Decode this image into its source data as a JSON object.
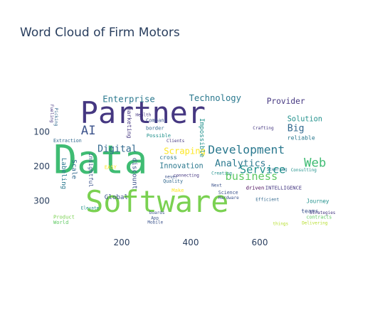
{
  "title": "Word Cloud of Firm Motors",
  "chart_data": {
    "type": "wordcloud",
    "title": "Word Cloud of Firm Motors",
    "xlabel": "",
    "ylabel": "",
    "xlim": [
      0,
      800
    ],
    "ylim": [
      400,
      0
    ],
    "x_ticks": [
      200,
      400,
      600
    ],
    "y_ticks": [
      100,
      200,
      300
    ],
    "words": [
      {
        "text": "Partner",
        "x": 80,
        "y": 10,
        "size": 82,
        "color": "#453781"
      },
      {
        "text": "Data",
        "x": 2,
        "y": 135,
        "size": 108,
        "color": "#3fbc73"
      },
      {
        "text": "Software",
        "x": 95,
        "y": 268,
        "size": 82,
        "color": "#7ad151"
      },
      {
        "text": "Development",
        "x": 450,
        "y": 138,
        "size": 32,
        "color": "#2a788e"
      },
      {
        "text": "Technology",
        "x": 395,
        "y": -8,
        "size": 24,
        "color": "#2a788e"
      },
      {
        "text": "Enterprise",
        "x": 145,
        "y": -5,
        "size": 24,
        "color": "#2a788e"
      },
      {
        "text": "Provider",
        "x": 620,
        "y": 2,
        "size": 22,
        "color": "#453781"
      },
      {
        "text": "business",
        "x": 500,
        "y": 216,
        "size": 30,
        "color": "#5ec962"
      },
      {
        "text": "Service",
        "x": 542,
        "y": 196,
        "size": 30,
        "color": "#21918c"
      },
      {
        "text": "Analytics",
        "x": 470,
        "y": 182,
        "size": 26,
        "color": "#2a788e"
      },
      {
        "text": "Web",
        "x": 728,
        "y": 176,
        "size": 34,
        "color": "#3fbc73"
      },
      {
        "text": "Digital",
        "x": 130,
        "y": 140,
        "size": 26,
        "color": "#31688e"
      },
      {
        "text": "Scraping",
        "x": 322,
        "y": 146,
        "size": 24,
        "color": "#fde725"
      },
      {
        "text": "AI",
        "x": 82,
        "y": 82,
        "size": 34,
        "color": "#3b528b"
      },
      {
        "text": "Big",
        "x": 680,
        "y": 80,
        "size": 26,
        "color": "#31688e"
      },
      {
        "text": "Solution",
        "x": 680,
        "y": 56,
        "size": 20,
        "color": "#21918c"
      },
      {
        "text": "Innovation",
        "x": 310,
        "y": 192,
        "size": 20,
        "color": "#2a788e"
      },
      {
        "text": "Global",
        "x": 150,
        "y": 282,
        "size": 18,
        "color": "#3b528b"
      },
      {
        "text": "Impossible",
        "x": 440,
        "y": 60,
        "size": 18,
        "color": "#21918c",
        "rotate": true
      },
      {
        "text": "marketing",
        "x": 230,
        "y": 28,
        "size": 16,
        "color": "#453781",
        "rotate": true
      },
      {
        "text": "discount",
        "x": 245,
        "y": 175,
        "size": 18,
        "color": "#3b528b",
        "rotate": true
      },
      {
        "text": "Labeling",
        "x": 40,
        "y": 175,
        "size": 18,
        "color": "#2a788e",
        "rotate": true
      },
      {
        "text": "Scale",
        "x": 70,
        "y": 180,
        "size": 18,
        "color": "#31688e",
        "rotate": true
      },
      {
        "text": "insightful",
        "x": 118,
        "y": 160,
        "size": 16,
        "color": "#3b528b",
        "rotate": true
      },
      {
        "text": "Company",
        "x": 270,
        "y": 60,
        "size": 14,
        "color": "#3b528b"
      },
      {
        "text": "border",
        "x": 270,
        "y": 82,
        "size": 14,
        "color": "#31688e"
      },
      {
        "text": "Possible",
        "x": 272,
        "y": 104,
        "size": 14,
        "color": "#21918c"
      },
      {
        "text": "Health",
        "x": 240,
        "y": 46,
        "size": 12,
        "color": "#453781"
      },
      {
        "text": "cross",
        "x": 310,
        "y": 166,
        "size": 16,
        "color": "#2a788e"
      },
      {
        "text": "Quality",
        "x": 320,
        "y": 238,
        "size": 13,
        "color": "#31688e"
      },
      {
        "text": "driven",
        "x": 560,
        "y": 255,
        "size": 14,
        "color": "#440154"
      },
      {
        "text": "INTELLIGENCE",
        "x": 616,
        "y": 255,
        "size": 14,
        "color": "#453781"
      },
      {
        "text": "Journey",
        "x": 735,
        "y": 295,
        "size": 15,
        "color": "#21918c"
      },
      {
        "text": "teams",
        "x": 720,
        "y": 322,
        "size": 16,
        "color": "#3b528b"
      },
      {
        "text": "reliable",
        "x": 680,
        "y": 110,
        "size": 16,
        "color": "#2a788e"
      },
      {
        "text": "Crafting",
        "x": 580,
        "y": 85,
        "size": 12,
        "color": "#453781"
      },
      {
        "text": "Science",
        "x": 480,
        "y": 270,
        "size": 13,
        "color": "#3b528b"
      },
      {
        "text": "Hardware",
        "x": 480,
        "y": 287,
        "size": 11,
        "color": "#3b528b"
      },
      {
        "text": "Make",
        "x": 345,
        "y": 263,
        "size": 14,
        "color": "#fde725"
      },
      {
        "text": "EASY",
        "x": 150,
        "y": 196,
        "size": 14,
        "color": "#fde725"
      },
      {
        "text": "Extraction",
        "x": 2,
        "y": 120,
        "size": 13,
        "color": "#31688e"
      },
      {
        "text": "Clients",
        "x": 330,
        "y": 122,
        "size": 11,
        "color": "#453781"
      },
      {
        "text": "Steering",
        "x": 620,
        "y": 204,
        "size": 11,
        "color": "#2a788e"
      },
      {
        "text": "Consulting",
        "x": 690,
        "y": 206,
        "size": 11,
        "color": "#21918c"
      },
      {
        "text": "Efficient",
        "x": 588,
        "y": 292,
        "size": 12,
        "color": "#31688e"
      },
      {
        "text": "contracts",
        "x": 735,
        "y": 342,
        "size": 13,
        "color": "#5ec962"
      },
      {
        "text": "Delivering",
        "x": 722,
        "y": 360,
        "size": 11,
        "color": "#b5de2b"
      },
      {
        "text": "Elevate",
        "x": 82,
        "y": 317,
        "size": 10,
        "color": "#21918c"
      },
      {
        "text": "boards",
        "x": 280,
        "y": 330,
        "size": 11,
        "color": "#3b528b"
      },
      {
        "text": "Mobile",
        "x": 275,
        "y": 358,
        "size": 11,
        "color": "#3b528b"
      },
      {
        "text": "never",
        "x": 325,
        "y": 226,
        "size": 11,
        "color": "#3b528b"
      },
      {
        "text": "connecting",
        "x": 350,
        "y": 222,
        "size": 10,
        "color": "#453781"
      },
      {
        "text": "Next",
        "x": 460,
        "y": 250,
        "size": 12,
        "color": "#3b528b"
      },
      {
        "text": "Strategies",
        "x": 745,
        "y": 330,
        "size": 9,
        "color": "#453781"
      },
      {
        "text": "Fueling",
        "x": 2,
        "y": 20,
        "size": 12,
        "color": "#453781",
        "rotate": true
      },
      {
        "text": "Picking",
        "x": 14,
        "y": 30,
        "size": 12,
        "color": "#31688e",
        "rotate": true
      },
      {
        "text": "Creating",
        "x": 460,
        "y": 215,
        "size": 11,
        "color": "#21918c"
      },
      {
        "text": "World",
        "x": 2,
        "y": 355,
        "size": 14,
        "color": "#5ec962"
      },
      {
        "text": "Product",
        "x": 2,
        "y": 340,
        "size": 14,
        "color": "#7ad151"
      },
      {
        "text": "things",
        "x": 638,
        "y": 362,
        "size": 10,
        "color": "#b5de2b"
      },
      {
        "text": "App",
        "x": 285,
        "y": 345,
        "size": 10,
        "color": "#3b528b"
      }
    ]
  }
}
